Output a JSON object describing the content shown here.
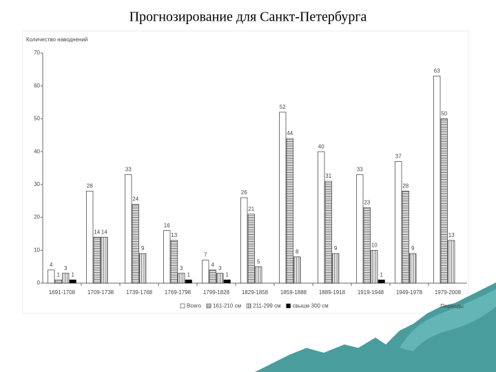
{
  "slide_title": "Прогнозирование для Санкт-Петербурга",
  "chart_data": {
    "type": "bar",
    "y_label": "Количество наводнений",
    "x_label": "Периоды",
    "categories": [
      "1691-1708",
      "1709-1738",
      "1739-1768",
      "1769-1798",
      "1799-1828",
      "1829-1858",
      "1859-1888",
      "1889-1918",
      "1919-1948",
      "1949-1978",
      "1979-2008"
    ],
    "series": [
      {
        "name": "Всего",
        "color": "#ffffff",
        "pattern": "none",
        "values": [
          4,
          28,
          33,
          16,
          7,
          26,
          52,
          40,
          33,
          37,
          63
        ]
      },
      {
        "name": "161-210 см",
        "color": "#ffffff",
        "pattern": "horizontal",
        "values": [
          1,
          14,
          24,
          13,
          4,
          21,
          44,
          31,
          23,
          28,
          50
        ]
      },
      {
        "name": "211-299 см",
        "color": "#ffffff",
        "pattern": "vertical",
        "values": [
          3,
          14,
          9,
          3,
          3,
          5,
          8,
          9,
          10,
          9,
          13
        ]
      },
      {
        "name": "свыше 300 см",
        "color": "#000000",
        "pattern": "none",
        "values": [
          1,
          null,
          null,
          1,
          1,
          null,
          null,
          null,
          1,
          null,
          null
        ]
      }
    ],
    "ylim": [
      0,
      70
    ],
    "yticks": [
      0,
      10,
      20,
      30,
      40,
      50,
      60,
      70
    ],
    "grid": false,
    "legend": "bottom"
  }
}
